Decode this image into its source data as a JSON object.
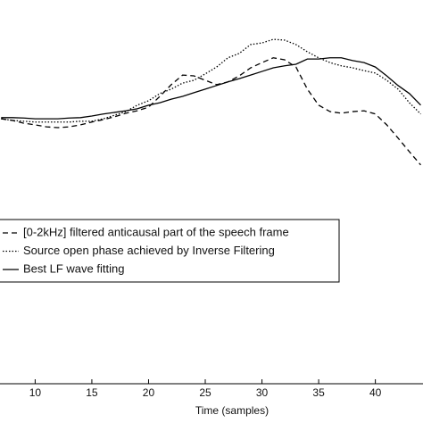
{
  "chart_data": {
    "type": "line",
    "x": [
      7,
      8,
      9,
      10,
      11,
      12,
      13,
      14,
      15,
      16,
      17,
      18,
      19,
      20,
      21,
      22,
      23,
      24,
      25,
      26,
      27,
      28,
      29,
      30,
      31,
      32,
      33,
      34,
      35,
      36,
      37,
      38,
      39,
      40,
      41,
      42,
      43,
      44
    ],
    "series": [
      {
        "name": "[0-2kHz] filtered anticausal part of the speech frame",
        "color": "#000000",
        "dash": "dashed",
        "values": [
          70.4,
          70,
          69.3,
          68.9,
          68.4,
          68.2,
          68.4,
          68.9,
          69.6,
          70.2,
          70.9,
          71.8,
          72.4,
          73.3,
          76,
          78.9,
          81.3,
          81.1,
          80,
          78.9,
          79.6,
          81.1,
          83.1,
          84.4,
          85.6,
          85.1,
          83.3,
          77.8,
          73.8,
          72.2,
          71.8,
          72.2,
          72.4,
          71.6,
          68.9,
          65.6,
          62.2,
          58.9
        ]
      },
      {
        "name": "Source open phase achieved by Inverse Filtering",
        "color": "#000000",
        "dash": "dotted",
        "values": [
          70.4,
          70,
          69.8,
          69.6,
          69.6,
          69.6,
          69.6,
          69.8,
          69.8,
          70.4,
          71.3,
          72.2,
          73.8,
          74.9,
          76.7,
          77.8,
          79.3,
          80,
          81.6,
          83.3,
          85.6,
          86.7,
          88.9,
          89.3,
          90.2,
          90,
          88.9,
          87.1,
          85.6,
          84.4,
          83.6,
          83.1,
          82.4,
          81.8,
          80,
          77.8,
          74.4,
          71.6
        ]
      },
      {
        "name": "Best LF wave fitting",
        "color": "#000000",
        "dash": "solid",
        "values": [
          70.7,
          70.7,
          70.6,
          70.4,
          70.4,
          70.4,
          70.6,
          70.7,
          71.1,
          71.6,
          72,
          72.4,
          72.9,
          73.8,
          74.4,
          75.3,
          76,
          76.9,
          77.8,
          78.7,
          79.6,
          80.4,
          81.3,
          82.2,
          83.1,
          83.6,
          84,
          85.3,
          85.3,
          85.6,
          85.6,
          84.9,
          84.4,
          83.3,
          81.1,
          78.7,
          76.7,
          73.8
        ]
      }
    ],
    "xlabel": "Time (samples)",
    "xlim": [
      6.9,
      44.2
    ],
    "xticks": [
      10,
      15,
      20,
      25,
      30,
      35,
      40
    ],
    "ylim": [
      4.4,
      100
    ]
  }
}
